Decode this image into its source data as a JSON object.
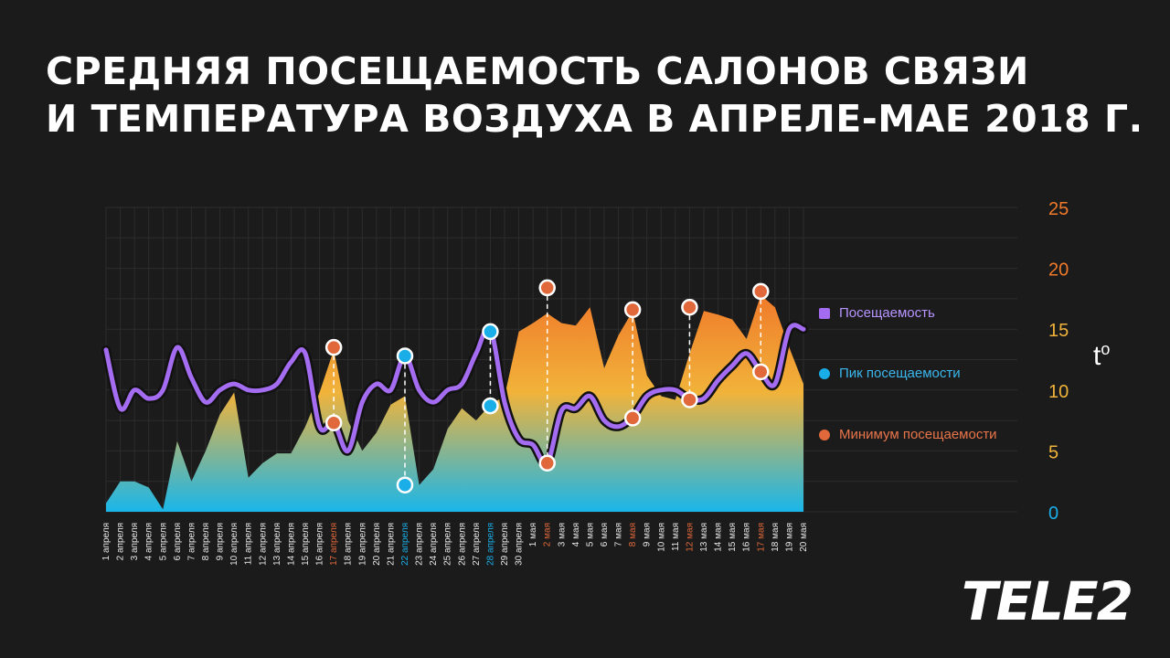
{
  "title": {
    "line1": "Средняя посещаемость салонов связи",
    "line2": "и температура воздуха в апреле-мае 2018 г."
  },
  "logo": "TELE2",
  "temp_axis_label": "t",
  "temp_axis_degree": "o",
  "legend": [
    {
      "label": "Посещаемость",
      "color": "#a46cf0",
      "shape": "square",
      "text_color": "#b794ff"
    },
    {
      "label": "Пик посещаемости",
      "color": "#1aaee8",
      "shape": "circle",
      "text_color": "#3bb7ee"
    },
    {
      "label": "Минимум посещаемости",
      "color": "#e0683a",
      "shape": "circle",
      "text_color": "#e9754a"
    }
  ],
  "colors": {
    "background": "#1b1b1b",
    "attendance_line": "#a46cf0",
    "peak": "#1aaee8",
    "minimum": "#e0683a",
    "area_top": "#f07a2a",
    "area_mid": "#f1b33a",
    "area_bottom": "#19b6ea"
  },
  "chart_data": {
    "type": "area",
    "x": [
      "1 апреля",
      "2 апреля",
      "3 апреля",
      "4 апреля",
      "5 апреля",
      "6 апреля",
      "7 апреля",
      "8 апреля",
      "9 апреля",
      "10 апреля",
      "11 апреля",
      "12 апреля",
      "13 апреля",
      "14 апреля",
      "15 апреля",
      "16 апреля",
      "17 апреля",
      "18 апреля",
      "19 апреля",
      "20 апреля",
      "21 апреля",
      "22 апреля",
      "23 апреля",
      "24 апреля",
      "25 апреля",
      "26 апреля",
      "27 апреля",
      "28 апреля",
      "29 апреля",
      "30 апреля",
      "1 мая",
      "2 мая",
      "3 мая",
      "4 мая",
      "5 мая",
      "6 мая",
      "7 мая",
      "8 мая",
      "9 мая",
      "10 мая",
      "11 мая",
      "12 мая",
      "13 мая",
      "14 мая",
      "15 мая",
      "16 мая",
      "17 мая",
      "18 мая",
      "19 мая",
      "20 мая"
    ],
    "x_highlight": {
      "17 апреля": "#e0683a",
      "22 апреля": "#1aaee8",
      "28 апреля": "#1aaee8",
      "2 мая": "#e0683a",
      "8 мая": "#e0683a",
      "12 мая": "#e0683a",
      "17 мая": "#e0683a"
    },
    "y_right_ticks": [
      "0",
      "5",
      "10",
      "15",
      "20",
      "25"
    ],
    "y_right_tick_colors": [
      "#1aaee8",
      "#f1b33a",
      "#f1b33a",
      "#f1b33a",
      "#f07a2a",
      "#f07a2a"
    ],
    "ylim": [
      0,
      25
    ],
    "grid": true,
    "series": [
      {
        "name": "Температура",
        "type": "area",
        "values": [
          0.7,
          2.5,
          2.5,
          2.0,
          0.2,
          5.8,
          2.5,
          5.0,
          8.0,
          9.8,
          2.8,
          4.0,
          4.8,
          4.8,
          7.0,
          9.8,
          13.3,
          7.5,
          5.0,
          6.5,
          8.8,
          9.5,
          2.2,
          3.5,
          6.8,
          8.5,
          7.5,
          8.8,
          9.5,
          14.8,
          15.5,
          16.3,
          15.5,
          15.3,
          16.8,
          11.8,
          14.5,
          16.5,
          11.2,
          9.5,
          9.2,
          13.0,
          16.5,
          16.2,
          15.8,
          14.2,
          17.8,
          16.8,
          13.5,
          10.5
        ]
      },
      {
        "name": "Посещаемость",
        "type": "line",
        "values": [
          13.3,
          8.5,
          10.0,
          9.3,
          10.0,
          13.5,
          11.0,
          9.0,
          10.0,
          10.5,
          10.0,
          10.0,
          10.5,
          12.3,
          13.0,
          7.0,
          7.3,
          5.0,
          9.0,
          10.5,
          10.0,
          12.8,
          10.0,
          9.0,
          10.0,
          10.5,
          13.0,
          15.0,
          9.0,
          6.0,
          5.5,
          4.0,
          8.3,
          8.5,
          9.5,
          7.5,
          7.0,
          7.8,
          9.5,
          10.0,
          10.0,
          9.3,
          9.3,
          10.8,
          12.0,
          13.0,
          11.5,
          10.5,
          15.0,
          15.0
        ]
      }
    ],
    "peaks": [
      {
        "x": "22 апреля",
        "high": 12.8,
        "low": 2.2
      },
      {
        "x": "28 апреля",
        "high": 14.8,
        "low": 8.7
      }
    ],
    "minimums": [
      {
        "x": "17 апреля",
        "high": 13.5,
        "low": 7.3
      },
      {
        "x": "2 мая",
        "high": 18.4,
        "low": 4.0
      },
      {
        "x": "8 мая",
        "high": 16.6,
        "low": 7.7
      },
      {
        "x": "12 мая",
        "high": 16.8,
        "low": 9.2
      },
      {
        "x": "17 мая",
        "high": 18.1,
        "low": 11.5
      }
    ]
  }
}
